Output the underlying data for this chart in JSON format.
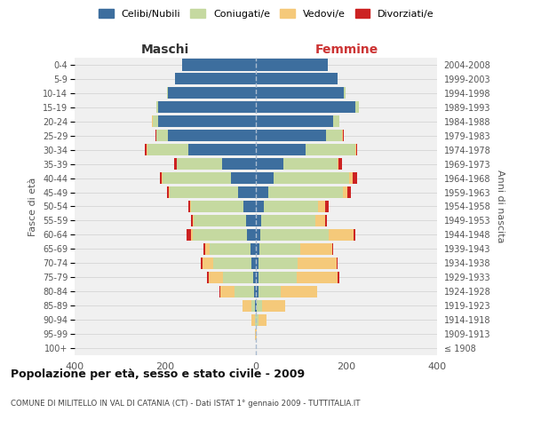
{
  "age_groups": [
    "100+",
    "95-99",
    "90-94",
    "85-89",
    "80-84",
    "75-79",
    "70-74",
    "65-69",
    "60-64",
    "55-59",
    "50-54",
    "45-49",
    "40-44",
    "35-39",
    "30-34",
    "25-29",
    "20-24",
    "15-19",
    "10-14",
    "5-9",
    "0-4"
  ],
  "birth_years": [
    "≤ 1908",
    "1909-1913",
    "1914-1918",
    "1919-1923",
    "1924-1928",
    "1929-1933",
    "1934-1938",
    "1939-1943",
    "1944-1948",
    "1949-1953",
    "1954-1958",
    "1959-1963",
    "1964-1968",
    "1969-1973",
    "1974-1978",
    "1979-1983",
    "1984-1988",
    "1989-1993",
    "1994-1998",
    "1999-2003",
    "2004-2008"
  ],
  "colors": {
    "celibe": "#3d6e9e",
    "coniugato": "#c5d9a0",
    "vedovo": "#f5c97a",
    "divorziato": "#cc2222"
  },
  "maschi": {
    "celibe": [
      0,
      0,
      0,
      2,
      3,
      5,
      10,
      12,
      20,
      22,
      28,
      40,
      55,
      75,
      150,
      195,
      215,
      215,
      195,
      178,
      162
    ],
    "coniugato": [
      0,
      0,
      2,
      8,
      45,
      68,
      85,
      90,
      120,
      115,
      115,
      150,
      150,
      100,
      90,
      25,
      12,
      5,
      2,
      0,
      0
    ],
    "vedovo": [
      0,
      2,
      8,
      20,
      30,
      30,
      22,
      10,
      4,
      2,
      2,
      2,
      2,
      0,
      2,
      0,
      2,
      0,
      0,
      0,
      0
    ],
    "divorziato": [
      0,
      0,
      0,
      0,
      2,
      5,
      5,
      3,
      8,
      5,
      4,
      5,
      5,
      5,
      4,
      2,
      0,
      0,
      0,
      0,
      0
    ]
  },
  "femmine": {
    "nubile": [
      0,
      0,
      0,
      2,
      5,
      5,
      5,
      8,
      10,
      12,
      18,
      28,
      40,
      60,
      110,
      155,
      170,
      220,
      195,
      180,
      158
    ],
    "coniugata": [
      0,
      0,
      5,
      12,
      50,
      85,
      88,
      90,
      150,
      120,
      120,
      165,
      165,
      120,
      110,
      35,
      15,
      8,
      3,
      0,
      0
    ],
    "vedova": [
      0,
      2,
      18,
      50,
      80,
      90,
      85,
      70,
      55,
      20,
      15,
      8,
      8,
      2,
      2,
      2,
      0,
      0,
      0,
      0,
      0
    ],
    "divorziata": [
      0,
      0,
      0,
      0,
      0,
      5,
      2,
      2,
      5,
      5,
      8,
      8,
      10,
      8,
      2,
      2,
      0,
      0,
      0,
      0,
      0
    ]
  },
  "title": "Popolazione per età, sesso e stato civile - 2009",
  "subtitle": "COMUNE DI MILITELLO IN VAL DI CATANIA (CT) - Dati ISTAT 1° gennaio 2009 - TUTTITALIA.IT",
  "xlabel_left": "Maschi",
  "xlabel_right": "Femmine",
  "ylabel_left": "Fasce di età",
  "ylabel_right": "Anni di nascita",
  "xlim": 400,
  "bg_color": "#f0f0f0",
  "grid_color": "#d0d0d0"
}
